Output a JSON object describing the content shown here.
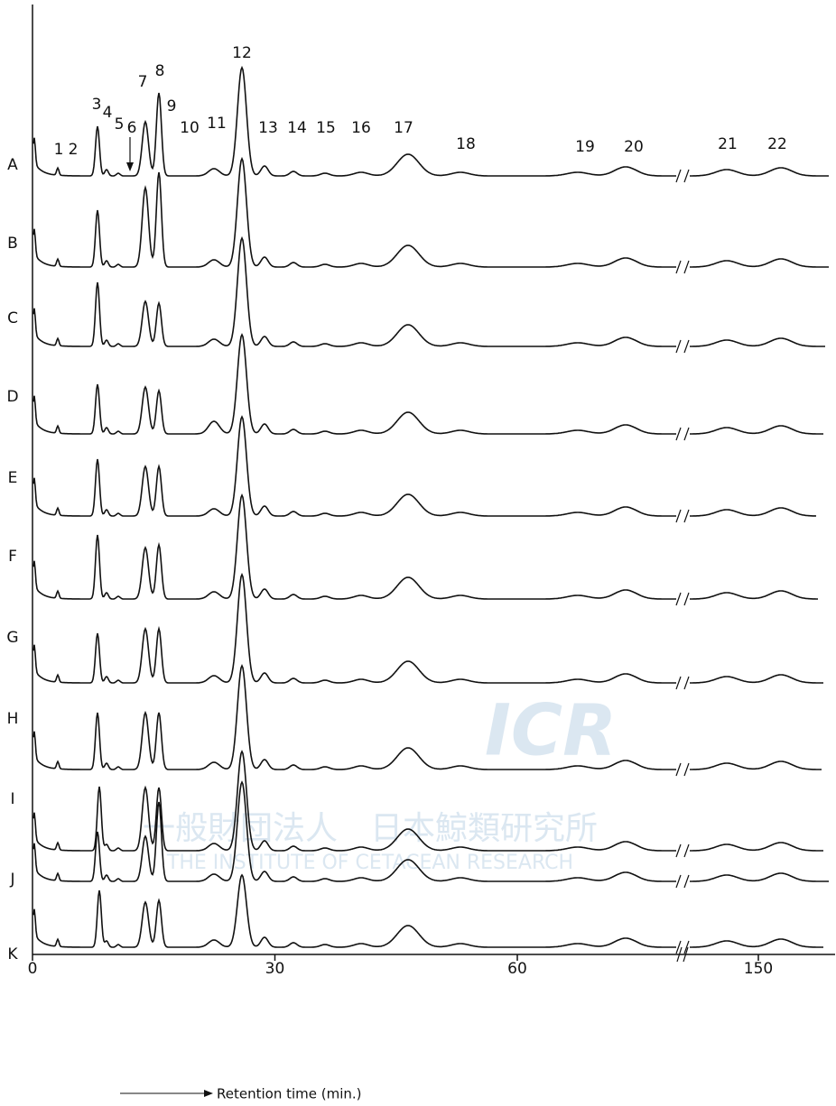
{
  "traces": [
    "A",
    "B",
    "C",
    "D",
    "E",
    "F",
    "G",
    "H",
    "I",
    "J",
    "K"
  ],
  "peak_labels": [
    "1",
    "2",
    "3",
    "4",
    "5",
    "6",
    "7",
    "8",
    "9",
    "10",
    "11",
    "12",
    "13",
    "14",
    "15",
    "16",
    "17",
    "18",
    "19",
    "20",
    "21",
    "22"
  ],
  "x_axis": {
    "ticks": [
      0,
      30,
      60,
      150
    ],
    "break": [
      80,
      140
    ],
    "label": "Retention time (min.)"
  },
  "watermark": {
    "logo": "ICR",
    "org_jp": "一般財団法人　日本鯨類研究所",
    "org_en": "THE INSTITUTE OF CETACEAN RESEARCH"
  }
}
